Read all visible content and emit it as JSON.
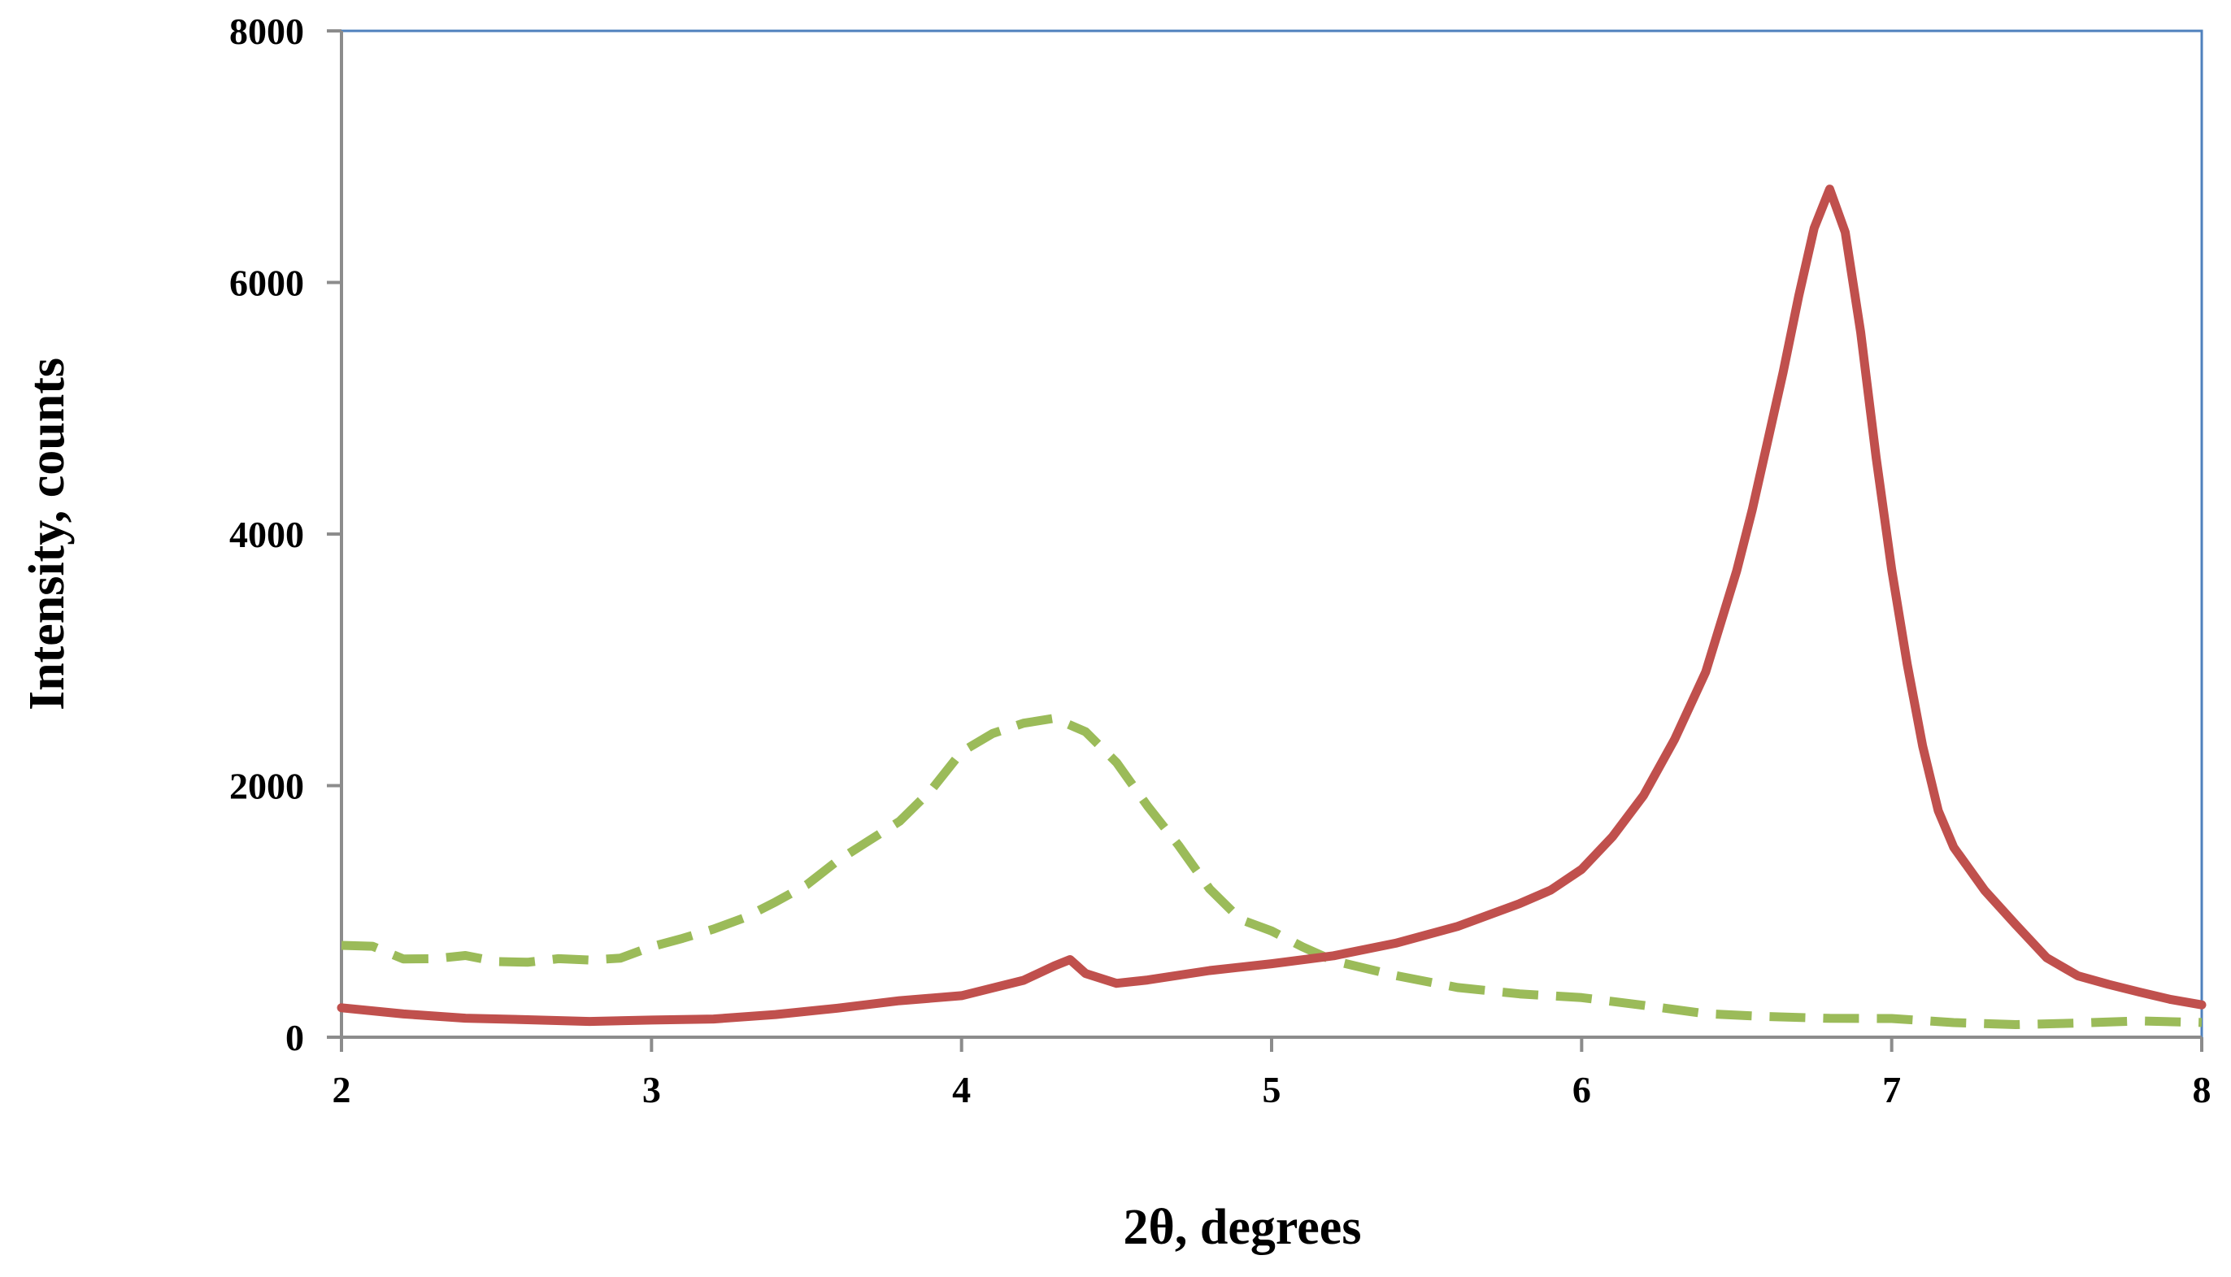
{
  "chart_data": {
    "type": "line",
    "title": "",
    "xlabel": "2θ, degrees",
    "ylabel": "Intensity, counts",
    "xlim": [
      2,
      8
    ],
    "ylim": [
      0,
      8000
    ],
    "x_ticks": [
      "2",
      "3",
      "4",
      "5",
      "6",
      "7",
      "8"
    ],
    "y_ticks": [
      "0",
      "2000",
      "4000",
      "6000",
      "8000"
    ],
    "grid": false,
    "legend": "none",
    "series": [
      {
        "style": "solid",
        "color": "#c0504d",
        "x": [
          2.0,
          2.2,
          2.4,
          2.6,
          2.8,
          3.0,
          3.2,
          3.4,
          3.6,
          3.8,
          4.0,
          4.1,
          4.2,
          4.3,
          4.35,
          4.4,
          4.5,
          4.6,
          4.8,
          5.0,
          5.2,
          5.4,
          5.6,
          5.8,
          5.9,
          6.0,
          6.1,
          6.2,
          6.3,
          6.4,
          6.5,
          6.55,
          6.6,
          6.65,
          6.7,
          6.75,
          6.8,
          6.85,
          6.9,
          6.95,
          7.0,
          7.05,
          7.1,
          7.15,
          7.2,
          7.3,
          7.4,
          7.5,
          7.6,
          7.7,
          7.8,
          7.9,
          8.0
        ],
        "y": [
          230,
          190,
          160,
          150,
          140,
          140,
          150,
          190,
          240,
          280,
          330,
          380,
          440,
          560,
          600,
          500,
          440,
          470,
          530,
          590,
          650,
          750,
          900,
          1050,
          1150,
          1330,
          1580,
          1920,
          2350,
          2900,
          3700,
          4200,
          4750,
          5300,
          5900,
          6450,
          6750,
          6400,
          5600,
          4600,
          3700,
          2950,
          2300,
          1800,
          1500,
          1150,
          900,
          650,
          500,
          420,
          360,
          310,
          270
        ]
      },
      {
        "style": "dashed",
        "color": "#9bbb59",
        "x": [
          2.0,
          2.1,
          2.2,
          2.3,
          2.4,
          2.5,
          2.6,
          2.7,
          2.8,
          2.9,
          3.0,
          3.1,
          3.2,
          3.3,
          3.4,
          3.5,
          3.6,
          3.7,
          3.8,
          3.9,
          4.0,
          4.1,
          4.2,
          4.3,
          4.4,
          4.5,
          4.6,
          4.7,
          4.8,
          4.9,
          5.0,
          5.1,
          5.2,
          5.4,
          5.6,
          5.8,
          6.0,
          6.2,
          6.4,
          6.6,
          6.8,
          7.0,
          7.2,
          7.4,
          7.6,
          7.8,
          8.0
        ],
        "y": [
          730,
          700,
          620,
          610,
          640,
          590,
          580,
          620,
          630,
          640,
          720,
          790,
          880,
          950,
          1080,
          1200,
          1380,
          1550,
          1700,
          1950,
          2250,
          2400,
          2480,
          2550,
          2450,
          2200,
          1850,
          1550,
          1200,
          950,
          820,
          700,
          600,
          480,
          390,
          330,
          290,
          230,
          200,
          170,
          160,
          150,
          130,
          120,
          120,
          110,
          110
        ]
      }
    ]
  }
}
